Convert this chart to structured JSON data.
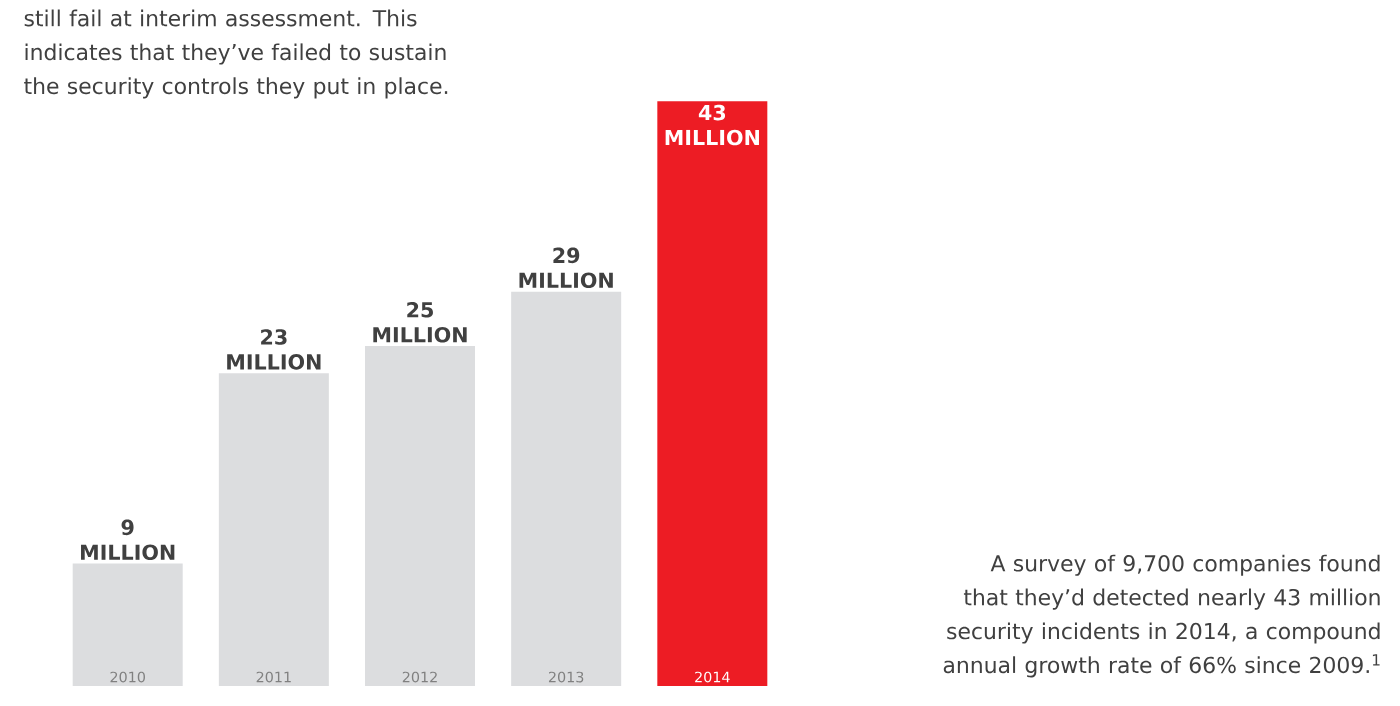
{
  "chart_data": {
    "type": "bar",
    "categories": [
      "2010",
      "2011",
      "2012",
      "2013",
      "2014"
    ],
    "values": [
      9,
      23,
      25,
      29,
      43
    ],
    "colors": [
      "#dcdddf",
      "#dcdddf",
      "#dcdddf",
      "#dcdddf",
      "#ed1c24"
    ],
    "value_labels": [
      "9 MILLION",
      "23 MILLION",
      "25 MILLION",
      "29 MILLION",
      "43 MILLION"
    ],
    "annotations": [
      "still fail at interim assessment. This indicates that they’ve failed to sustain the security controls they put in place.",
      "A survey of 9,700 companies found that they’d detected nearly 43 million security incidents in 2014, a compound annual growth rate of 66% since 2009.$^{1}$"
    ]
  }
}
